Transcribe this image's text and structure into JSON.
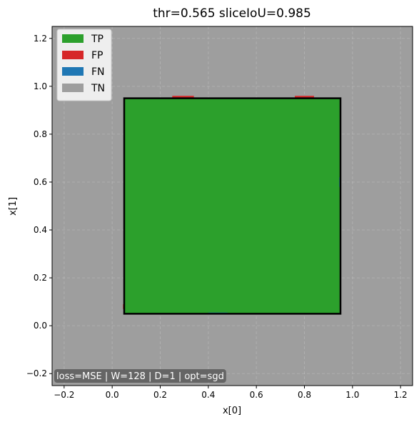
{
  "chart_data": {
    "type": "heatmap",
    "title": "thr=0.565  sliceIoU=0.985",
    "xlabel": "x[0]",
    "ylabel": "x[1]",
    "xlim": [
      -0.25,
      1.25
    ],
    "ylim": [
      -0.25,
      1.25
    ],
    "xticks": [
      -0.2,
      0.0,
      0.2,
      0.4,
      0.6,
      0.8,
      1.0,
      1.2
    ],
    "xtick_labels": [
      "−0.2",
      "0.0",
      "0.2",
      "0.4",
      "0.6",
      "0.8",
      "1.0",
      "1.2"
    ],
    "yticks": [
      -0.2,
      0.0,
      0.2,
      0.4,
      0.6,
      0.8,
      1.0,
      1.2
    ],
    "ytick_labels": [
      "−0.2",
      "0.0",
      "0.2",
      "0.4",
      "0.6",
      "0.8",
      "1.0",
      "1.2"
    ],
    "grid": true,
    "legend_position": "top-left",
    "legend": [
      {
        "label": "TP",
        "color": "#2ca02c"
      },
      {
        "label": "FP",
        "color": "#d62728"
      },
      {
        "label": "FN",
        "color": "#1f77b4"
      },
      {
        "label": "TN",
        "color": "#9e9e9e"
      }
    ],
    "background_class": "TN",
    "regions": [
      {
        "class": "TP",
        "x": [
          0.05,
          0.95
        ],
        "y": [
          0.05,
          0.95
        ]
      },
      {
        "class": "FP",
        "x": [
          0.25,
          0.34
        ],
        "y": [
          0.95,
          0.96
        ]
      },
      {
        "class": "FP",
        "x": [
          0.76,
          0.84
        ],
        "y": [
          0.95,
          0.96
        ]
      },
      {
        "class": "FP",
        "x": [
          0.045,
          0.05
        ],
        "y": [
          0.07,
          0.09
        ]
      },
      {
        "class": "FN",
        "x": [
          0.4,
          0.48
        ],
        "y": [
          0.05,
          0.055
        ]
      },
      {
        "class": "FN",
        "x": [
          0.945,
          0.95
        ],
        "y": [
          0.58,
          0.62
        ]
      }
    ],
    "ground_truth_box": {
      "x": [
        0.05,
        0.95
      ],
      "y": [
        0.05,
        0.95
      ],
      "color": "#000000"
    },
    "annotation": "loss=MSE | W=128 | D=1 | opt=sgd"
  }
}
